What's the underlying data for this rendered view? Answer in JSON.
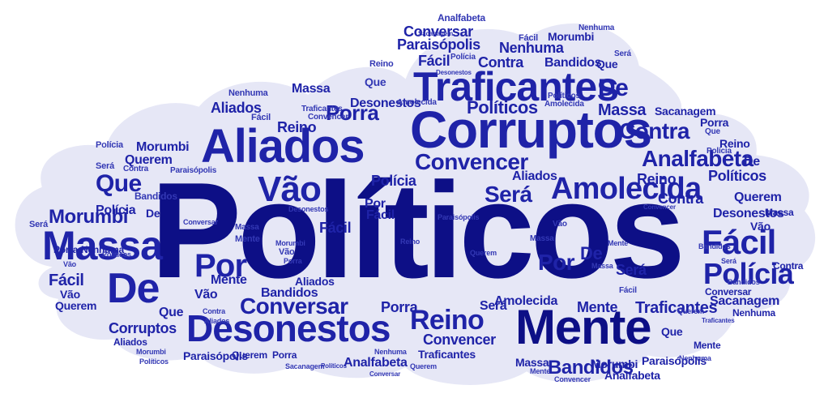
{
  "colors": {
    "cloud_fill": "#e6e7f6",
    "cloud_edge": "#ffffff",
    "dark_ink": "#0d0f86",
    "mid_ink": "#1f23a8",
    "light_ink": "#3338b4"
  },
  "words": {
    "main": "Políticos",
    "corruptos": "Corruptos",
    "aliados": "Aliados",
    "traficantes": "Traficantes",
    "desonestos": "Desonestos",
    "mente": "Mente",
    "massa": "Massa",
    "de": "De",
    "vao": "Vão",
    "por": "Por",
    "amolecida": "Amolecida",
    "facil": "Fácil",
    "policia": "Polícia",
    "convencer": "Convencer",
    "conversar": "Conversar",
    "reino": "Reino",
    "analfabeta": "Analfabeta",
    "contra": "Contra",
    "sera": "Será",
    "que": "Que",
    "morumbi": "Morumbi",
    "querem": "Querem",
    "nenhuma": "Nenhuma",
    "bandidos": "Bandidos",
    "sacanagem": "Sacanagem",
    "paraisopolis": "Paraisópolis",
    "porra": "Porra"
  }
}
